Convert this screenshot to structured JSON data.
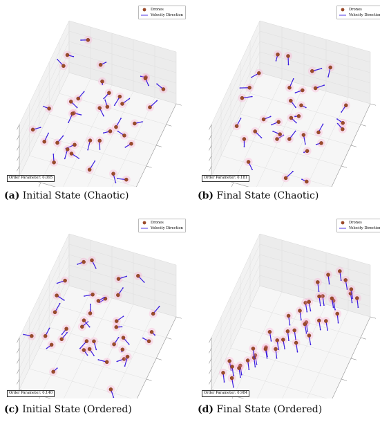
{
  "figure": {
    "legend": {
      "drones_label": "Drones",
      "velocity_label": "Velocity Direction",
      "drone_color": "#9b4a2a",
      "arrow_color": "#3b1ee0",
      "halo_color": "#ff9ecb"
    },
    "panels": [
      {
        "id": "a",
        "letter": "(a)",
        "title": "Initial State (Chaotic)",
        "order_label": "Order Parameter: 0.095"
      },
      {
        "id": "b",
        "letter": "(b)",
        "title": "Final State (Chaotic)",
        "order_label": "Order Parameter: 0.181"
      },
      {
        "id": "c",
        "letter": "(c)",
        "title": "Initial State (Ordered)",
        "order_label": "Order Parameter: 0.140"
      },
      {
        "id": "d",
        "letter": "(d)",
        "title": "Final State (Ordered)",
        "order_label": "Order Parameter: 0.984"
      }
    ]
  },
  "chart_data": [
    {
      "type": "scatter",
      "panel": "a",
      "title": "Initial State (Chaotic)",
      "order_parameter": 0.095,
      "series": [
        {
          "name": "Drones",
          "x": [
            0.05,
            0.12,
            0.25,
            0.38,
            0.55,
            0.68,
            0.82,
            0.92,
            0.18,
            0.33,
            0.47,
            0.62,
            0.75,
            0.88,
            0.08,
            0.22,
            0.41,
            0.58,
            0.71,
            0.85,
            0.15,
            0.29,
            0.52,
            0.66,
            0.79,
            0.95,
            0.35,
            0.48,
            0.61,
            0.27,
            0.44,
            0.72,
            0.9,
            0.1,
            0.57,
            0.83
          ],
          "y": [
            0.2,
            0.35,
            0.1,
            0.55,
            0.3,
            0.7,
            0.15,
            0.45,
            0.8,
            0.65,
            0.25,
            0.9,
            0.4,
            0.6,
            0.75,
            0.05,
            0.5,
            0.85,
            0.22,
            0.38,
            0.95,
            0.42,
            0.68,
            0.12,
            0.78,
            0.3,
            0.18,
            0.58,
            0.48,
            0.88,
            0.72,
            0.62,
            0.08,
            0.52,
            0.35,
            0.92
          ],
          "z": [
            0.85,
            0.6,
            0.9,
            0.7,
            0.5,
            0.65,
            0.4,
            0.55,
            0.75,
            0.45,
            0.3,
            0.8,
            0.35,
            0.25,
            0.5,
            0.6,
            0.95,
            0.3,
            0.2,
            0.45,
            0.55,
            0.15,
            0.4,
            0.7,
            0.1,
            0.35,
            0.25,
            0.65,
            0.2,
            0.4,
            0.1,
            0.5,
            0.75,
            0.05,
            0.85,
            0.15
          ],
          "u": [
            0.5,
            -0.7,
            0.2,
            0.9,
            -0.3,
            0.6,
            -0.8,
            0.1,
            0.4,
            -0.5,
            0.8,
            -0.2,
            0.7,
            -0.9,
            0.3,
            -0.4,
            0.6,
            0.2,
            -0.6,
            0.9,
            -0.1,
            0.5,
            -0.8,
            0.3,
            0.7,
            -0.5,
            0.4,
            -0.3,
            0.8,
            -0.7,
            0.1,
            0.6,
            -0.2,
            0.9,
            -0.6,
            0.3
          ],
          "v": [
            -0.6,
            0.3,
            0.8,
            -0.2,
            0.7,
            -0.5,
            0.1,
            0.9,
            -0.4,
            0.6,
            -0.1,
            0.8,
            -0.7,
            0.2,
            0.5,
            -0.9,
            0.3,
            -0.6,
            0.4,
            0.1,
            -0.8,
            0.7,
            0.2,
            -0.5,
            0.6,
            -0.3,
            0.9,
            -0.4,
            0.1,
            0.5,
            -0.7,
            0.3,
            0.8,
            -0.2,
            0.4,
            -0.9
          ],
          "w": [
            0.6,
            -0.6,
            0.5,
            0.3,
            -0.6,
            0.5,
            0.5,
            -0.4,
            0.8,
            0.6,
            -0.6,
            0.5,
            0.1,
            0.4,
            -0.8,
            0.2,
            0.7,
            -0.8,
            0.7,
            -0.4,
            0.6,
            -0.5,
            0.6,
            0.8,
            -0.4,
            0.8,
            -0.1,
            0.8,
            -0.6,
            0.5,
            0.8,
            -0.7,
            0.6,
            -0.4,
            0.7,
            0.3
          ]
        }
      ]
    },
    {
      "type": "scatter",
      "panel": "b",
      "title": "Final State (Chaotic)",
      "order_parameter": 0.181,
      "series": [
        {
          "name": "Drones",
          "x": [
            0.1,
            0.22,
            0.36,
            0.5,
            0.64,
            0.78,
            0.9,
            0.16,
            0.3,
            0.44,
            0.58,
            0.72,
            0.86,
            0.06,
            0.2,
            0.34,
            0.48,
            0.62,
            0.76,
            0.92,
            0.26,
            0.4,
            0.54,
            0.68,
            0.82,
            0.14,
            0.46,
            0.6,
            0.74,
            0.88,
            0.32,
            0.52
          ],
          "y": [
            0.3,
            0.6,
            0.15,
            0.75,
            0.45,
            0.2,
            0.55,
            0.85,
            0.4,
            0.1,
            0.65,
            0.35,
            0.8,
            0.5,
            0.25,
            0.9,
            0.05,
            0.7,
            0.6,
            0.3,
            0.5,
            0.55,
            0.52,
            0.48,
            0.15,
            0.7,
            0.95,
            0.22,
            0.88,
            0.62,
            0.42,
            0.58
          ],
          "z": [
            0.7,
            0.5,
            0.8,
            0.3,
            0.6,
            0.4,
            0.85,
            0.2,
            0.55,
            0.65,
            0.35,
            0.75,
            0.1,
            0.45,
            0.9,
            0.25,
            0.5,
            0.15,
            0.6,
            0.3,
            0.48,
            0.5,
            0.52,
            0.46,
            0.7,
            0.8,
            0.4,
            0.2,
            0.65,
            0.1,
            0.35,
            0.55
          ],
          "u": [
            0.6,
            -0.4,
            0.8,
            -0.7,
            0.2,
            0.9,
            -0.3,
            0.5,
            -0.8,
            0.4,
            0.7,
            -0.2,
            0.3,
            -0.6,
            0.9,
            0.1,
            -0.5,
            0.6,
            -0.9,
            0.4,
            0.7,
            -0.3,
            0.5,
            0.2,
            -0.6,
            0.8,
            -0.1,
            0.4,
            0.6,
            -0.7,
            0.3,
            0.5
          ],
          "v": [
            0.3,
            0.8,
            -0.5,
            0.2,
            -0.7,
            0.4,
            0.6,
            -0.3,
            0.1,
            -0.9,
            0.5,
            0.7,
            -0.4,
            0.8,
            0.2,
            -0.6,
            0.9,
            -0.1,
            0.3,
            0.6,
            -0.5,
            0.4,
            0.8,
            -0.7,
            0.2,
            0.1,
            -0.6,
            0.9,
            -0.3,
            0.5,
            0.7,
            -0.2
          ],
          "w": [
            -0.7,
            0.4,
            0.3,
            0.7,
            -0.7,
            0.2,
            0.7,
            -0.8,
            0.6,
            0.2,
            -0.5,
            0.7,
            0.9,
            -0.1,
            0.4,
            0.8,
            -0.1,
            0.8,
            0.3,
            -0.7,
            0.5,
            -0.9,
            0.3,
            0.7,
            0.8,
            -0.6,
            0.8,
            -0.2,
            0.7,
            0.5,
            -0.6,
            0.8
          ]
        }
      ]
    },
    {
      "type": "scatter",
      "panel": "c",
      "title": "Initial State (Ordered)",
      "order_parameter": 0.14,
      "series": [
        {
          "name": "Drones",
          "x": [
            0.08,
            0.2,
            0.34,
            0.46,
            0.6,
            0.74,
            0.88,
            0.14,
            0.28,
            0.42,
            0.56,
            0.7,
            0.84,
            0.04,
            0.18,
            0.32,
            0.5,
            0.64,
            0.78,
            0.92,
            0.24,
            0.38,
            0.52,
            0.66,
            0.8,
            0.12,
            0.44,
            0.58,
            0.72,
            0.3,
            0.48,
            0.62,
            0.86,
            0.1,
            0.54,
            0.68
          ],
          "y": [
            0.25,
            0.55,
            0.12,
            0.72,
            0.4,
            0.18,
            0.6,
            0.85,
            0.35,
            0.08,
            0.68,
            0.3,
            0.78,
            0.48,
            0.22,
            0.92,
            0.1,
            0.65,
            0.5,
            0.28,
            0.45,
            0.62,
            0.38,
            0.82,
            0.15,
            0.7,
            0.95,
            0.2,
            0.88,
            0.58,
            0.42,
            0.52,
            0.05,
            0.32,
            0.75,
            0.48
          ],
          "z": [
            0.8,
            0.55,
            0.85,
            0.35,
            0.65,
            0.45,
            0.9,
            0.25,
            0.6,
            0.7,
            0.4,
            0.75,
            0.15,
            0.5,
            0.95,
            0.3,
            0.55,
            0.2,
            0.62,
            0.35,
            0.5,
            0.45,
            0.6,
            0.4,
            0.72,
            0.85,
            0.38,
            0.25,
            0.6,
            0.15,
            0.68,
            0.48,
            0.78,
            0.1,
            0.3,
            0.58
          ],
          "u": [
            0.5,
            -0.6,
            0.7,
            0.3,
            -0.4,
            0.8,
            0.2,
            -0.7,
            0.6,
            0.1,
            -0.5,
            0.9,
            0.4,
            -0.3,
            0.7,
            0.5,
            -0.8,
            0.2,
            0.6,
            -0.1,
            0.8,
            -0.4,
            0.3,
            0.7,
            -0.6,
            0.4,
            0.2,
            -0.5,
            0.9,
            0.1,
            -0.7,
            0.5,
            0.3,
            -0.2,
            0.6,
            0.8
          ],
          "v": [
            0.7,
            0.3,
            -0.6,
            0.8,
            0.5,
            -0.2,
            0.6,
            0.4,
            -0.7,
            0.9,
            0.3,
            -0.1,
            0.5,
            0.8,
            -0.4,
            0.6,
            0.2,
            -0.9,
            0.7,
            0.4,
            -0.3,
            0.6,
            0.8,
            -0.5,
            0.2,
            0.9,
            -0.6,
            0.4,
            0.1,
            0.7,
            -0.3,
            0.5,
            -0.8,
            0.6,
            0.2,
            -0.4
          ],
          "w": [
            -0.5,
            0.7,
            0.4,
            -0.5,
            0.7,
            0.6,
            -0.8,
            0.6,
            0.4,
            -0.4,
            0.8,
            0.4,
            -0.8,
            0.5,
            0.6,
            0.6,
            0.6,
            0.4,
            0.4,
            0.9,
            0.5,
            0.7,
            -0.5,
            0.5,
            0.8,
            -0.2,
            0.8,
            0.8,
            -0.4,
            0.7,
            0.6,
            -0.7,
            0.5,
            0.8,
            0.8,
            -0.4
          ]
        }
      ]
    },
    {
      "type": "scatter",
      "panel": "d",
      "title": "Final State (Ordered)",
      "order_parameter": 0.984,
      "series": [
        {
          "name": "Drones",
          "x": [
            0.06,
            0.1,
            0.14,
            0.18,
            0.22,
            0.26,
            0.3,
            0.34,
            0.38,
            0.42,
            0.46,
            0.5,
            0.54,
            0.58,
            0.62,
            0.66,
            0.7,
            0.74,
            0.78,
            0.82,
            0.86,
            0.9,
            0.94,
            0.12,
            0.2,
            0.28,
            0.36,
            0.44,
            0.52,
            0.6,
            0.68,
            0.76,
            0.84,
            0.92,
            0.16,
            0.32,
            0.48,
            0.64,
            0.8,
            0.24
          ],
          "y": [
            0.75,
            0.82,
            0.68,
            0.9,
            0.62,
            0.78,
            0.7,
            0.85,
            0.58,
            0.72,
            0.8,
            0.64,
            0.55,
            0.7,
            0.6,
            0.5,
            0.45,
            0.38,
            0.3,
            0.25,
            0.2,
            0.12,
            0.08,
            0.88,
            0.74,
            0.66,
            0.52,
            0.6,
            0.48,
            0.42,
            0.35,
            0.28,
            0.18,
            0.15,
            0.95,
            0.4,
            0.3,
            0.22,
            0.1,
            0.55
          ],
          "z": [
            0.85,
            0.8,
            0.9,
            0.75,
            0.88,
            0.7,
            0.82,
            0.65,
            0.78,
            0.6,
            0.72,
            0.68,
            0.55,
            0.62,
            0.5,
            0.58,
            0.45,
            0.52,
            0.4,
            0.35,
            0.3,
            0.42,
            0.25,
            0.7,
            0.6,
            0.75,
            0.55,
            0.5,
            0.45,
            0.4,
            0.35,
            0.3,
            0.2,
            0.15,
            0.65,
            0.3,
            0.25,
            0.2,
            0.1,
            0.5
          ],
          "u": [
            0.8,
            0.78,
            0.82,
            0.79,
            0.81,
            0.77,
            0.8,
            0.83,
            0.79,
            0.8,
            0.78,
            0.82,
            0.81,
            0.79,
            0.8,
            0.78,
            0.82,
            0.8,
            0.79,
            0.81,
            0.8,
            0.78,
            0.82,
            0.8,
            0.79,
            0.81,
            0.8,
            0.78,
            0.82,
            0.8,
            0.79,
            0.81,
            0.8,
            0.78,
            0.82,
            0.8,
            0.79,
            0.81,
            0.8,
            0.78
          ],
          "v": [
            0.5,
            0.52,
            0.48,
            0.51,
            0.49,
            0.53,
            0.5,
            0.47,
            0.51,
            0.5,
            0.52,
            0.48,
            0.49,
            0.51,
            0.5,
            0.52,
            0.48,
            0.5,
            0.51,
            0.49,
            0.5,
            0.52,
            0.48,
            0.5,
            0.51,
            0.49,
            0.5,
            0.52,
            0.48,
            0.5,
            0.51,
            0.49,
            0.5,
            0.52,
            0.48,
            0.5,
            0.51,
            0.49,
            0.5,
            0.52
          ],
          "w": [
            -0.3,
            -0.32,
            -0.28,
            -0.31,
            -0.29,
            -0.33,
            -0.3,
            -0.27,
            -0.31,
            -0.3,
            -0.32,
            -0.28,
            -0.29,
            -0.31,
            -0.3,
            -0.32,
            -0.28,
            -0.3,
            -0.31,
            -0.29,
            -0.3,
            -0.32,
            -0.28,
            -0.3,
            -0.31,
            -0.29,
            -0.3,
            -0.32,
            -0.28,
            -0.3,
            -0.31,
            -0.29,
            -0.3,
            -0.32,
            -0.28,
            -0.3,
            -0.31,
            -0.29,
            -0.3,
            -0.32
          ]
        }
      ]
    }
  ]
}
